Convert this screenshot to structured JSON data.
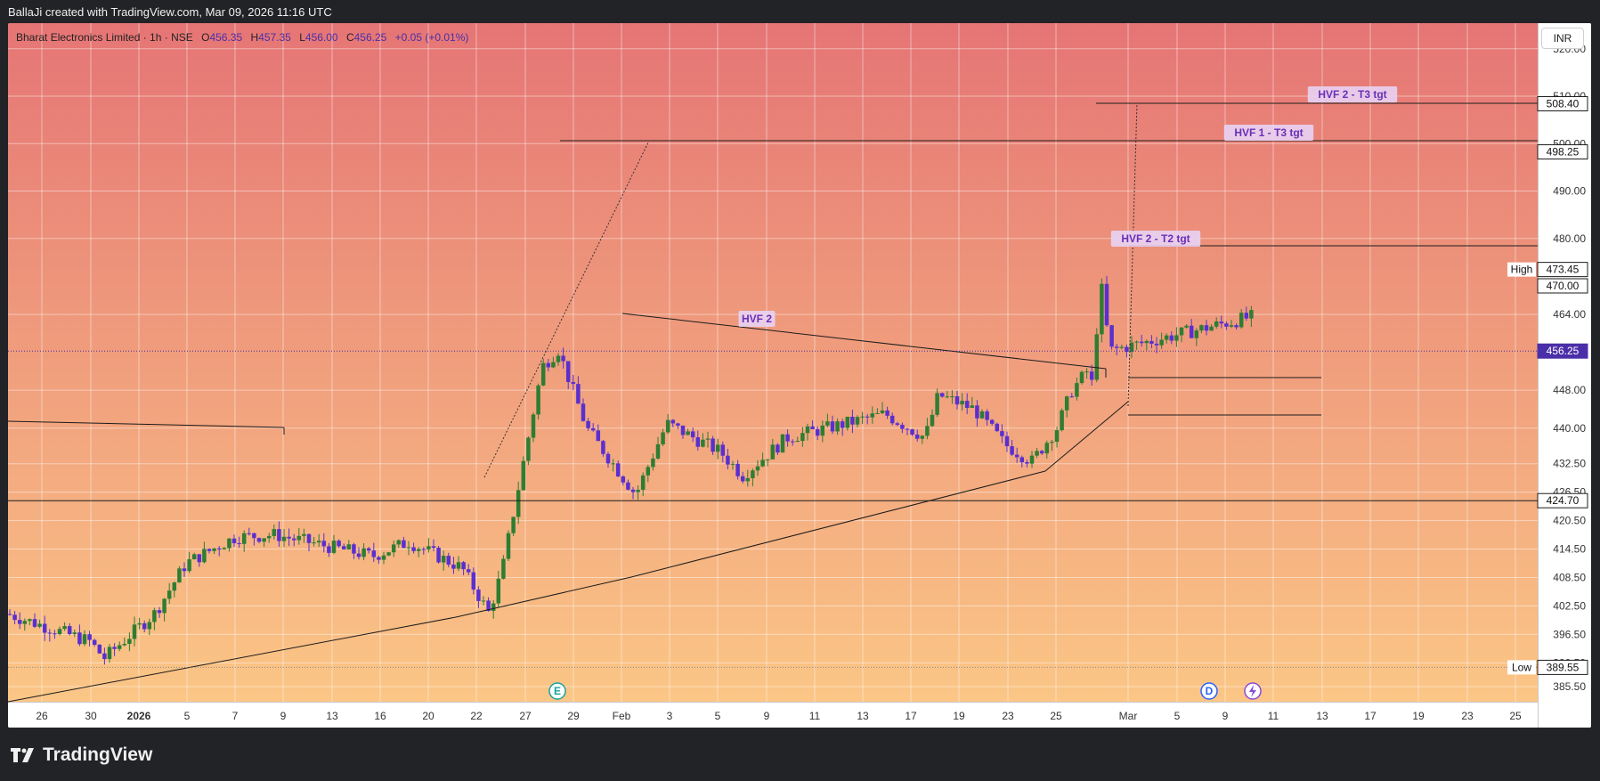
{
  "header": {
    "text": "BallaJi created with TradingView.com, Mar 09, 2026 11:16 UTC"
  },
  "symbol": {
    "name": "Bharat Electronics Limited · 1h · NSE",
    "open_key": "O",
    "open": "456.35",
    "high_key": "H",
    "high": "457.35",
    "low_key": "L",
    "low": "456.00",
    "close_key": "C",
    "close": "456.25",
    "change": "+0.05 (+0.01%)"
  },
  "currency_button": "INR",
  "footer": {
    "brand": "TradingView"
  },
  "chart_data": {
    "type": "candlestick",
    "ylim": [
      382.3,
      525.4
    ],
    "y_ticks": [
      "520.00",
      "510.00",
      "500.00",
      "490.00",
      "480.00",
      "464.00",
      "448.00",
      "440.00",
      "432.50",
      "426.50",
      "420.50",
      "414.50",
      "408.50",
      "402.50",
      "396.50",
      "390.50",
      "385.50"
    ],
    "x_ticks": [
      "26",
      "30",
      "2026",
      "5",
      "7",
      "9",
      "13",
      "16",
      "20",
      "22",
      "27",
      "29",
      "Feb",
      "3",
      "5",
      "9",
      "11",
      "13",
      "17",
      "19",
      "23",
      "25",
      "Mar",
      "5",
      "9",
      "11",
      "13",
      "17",
      "19",
      "23",
      "25"
    ],
    "price_tags": [
      {
        "label": "508.40",
        "value": 508.4,
        "style": "line"
      },
      {
        "label": "498.25",
        "value": 498.25,
        "style": "line"
      },
      {
        "label": "473.45",
        "value": 473.45,
        "style": "high",
        "prefix": "High"
      },
      {
        "label": "470.00",
        "value": 470.0,
        "style": "line"
      },
      {
        "label": "456.25",
        "value": 456.25,
        "style": "current"
      },
      {
        "label": "424.70",
        "value": 424.7,
        "style": "line"
      },
      {
        "label": "389.55",
        "value": 389.55,
        "style": "low",
        "prefix": "Low"
      }
    ],
    "annotations": [
      {
        "text": "HVF 2 - T3 tgt",
        "target": 508.4
      },
      {
        "text": "HVF 1 - T3 tgt",
        "target": 498.25
      },
      {
        "text": "HVF 2 - T2 tgt",
        "target": 470.0
      },
      {
        "text": "HVF 2",
        "target": null
      }
    ],
    "event_markers": [
      {
        "symbol": "E",
        "date": "29",
        "color": "#1aa39a"
      },
      {
        "symbol": "D",
        "date": "5 Mar",
        "color": "#2962ff"
      }
    ],
    "candles_summary": {
      "start": "Dec 24 2025",
      "end": "Mar 09 2026",
      "points": [
        [
          400.8,
          "24 Dec"
        ],
        [
          395.0,
          "30 Dec"
        ],
        [
          391.5,
          "31 Dec"
        ],
        [
          401.0,
          "2 Jan"
        ],
        [
          411.5,
          "5 Jan"
        ],
        [
          417.0,
          "6 Jan"
        ],
        [
          417.5,
          "9 Jan"
        ],
        [
          413.0,
          "13 Jan"
        ],
        [
          416.0,
          "16 Jan"
        ],
        [
          410.5,
          "19 Jan"
        ],
        [
          401.0,
          "21 Jan"
        ],
        [
          410.0,
          "27 Jan"
        ],
        [
          453.0,
          "29 Jan"
        ],
        [
          456.5,
          "30 Jan"
        ],
        [
          440.0,
          "1 Feb"
        ],
        [
          426.0,
          "2 Feb"
        ],
        [
          441.0,
          "3 Feb"
        ],
        [
          435.0,
          "5 Feb"
        ],
        [
          430.0,
          "6 Feb"
        ],
        [
          438.0,
          "9 Feb"
        ],
        [
          440.0,
          "11 Feb"
        ],
        [
          443.0,
          "13 Feb"
        ],
        [
          438.0,
          "16 Feb"
        ],
        [
          447.0,
          "17 Feb"
        ],
        [
          444.0,
          "19 Feb"
        ],
        [
          436.5,
          "23 Feb"
        ],
        [
          433.0,
          "24 Feb"
        ],
        [
          440.0,
          "25 Feb"
        ],
        [
          448.0,
          "27 Feb"
        ],
        [
          452.0,
          "2 Mar"
        ],
        [
          449.0,
          "4 Mar"
        ],
        [
          464.0,
          "5 Mar"
        ],
        [
          471.0,
          "6 Mar"
        ],
        [
          456.25,
          "9 Mar"
        ]
      ]
    }
  },
  "colors": {
    "up": "#2e7d32",
    "down": "#5a2fd0",
    "accent": "#4a2fa8"
  }
}
